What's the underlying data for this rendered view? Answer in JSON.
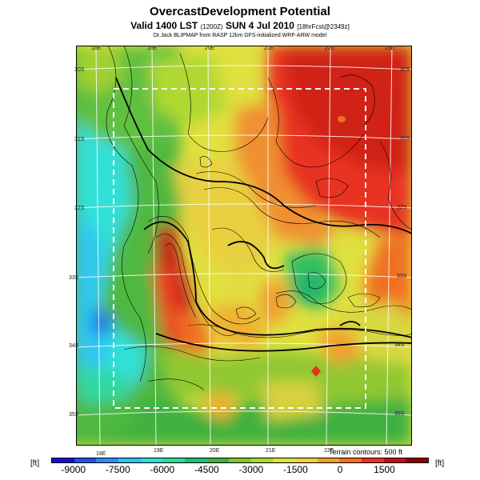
{
  "header": {
    "title": "OvercastDevelopment Potential",
    "valid_main": "Valid 1400 LST",
    "valid_small": "(1200Z)",
    "valid_date": "SUN 4 Jul 2010",
    "valid_fcst": "[18hrFcst@2349z]",
    "credit": "Dr.Jack BLIPMAP from RASP 12km GFS-initialized WRF-ARW model"
  },
  "map": {
    "lon_labels_top": [
      "18E",
      "19E",
      "20E",
      "21E",
      "22E",
      "23E"
    ],
    "lon_labels_bottom": [
      "18E",
      "19E",
      "20E",
      "21E",
      "22E"
    ],
    "lat_labels_left": [
      "30S",
      "31S",
      "32S",
      "33S",
      "34S",
      "35S"
    ],
    "lat_labels_right": [
      "30S",
      "31S",
      "32S",
      "33S",
      "34S",
      "35S"
    ],
    "terrain_note": "Terrain contours: 500 ft"
  },
  "legend": {
    "unit_left": "[ft]",
    "unit_right": "[ft]",
    "ticks": [
      "-9000",
      "-7500",
      "-6000",
      "-4500",
      "-3000",
      "-1500",
      "0",
      "1500"
    ],
    "colors": [
      "#1010d0",
      "#1f50e8",
      "#2f8cf0",
      "#30c0f0",
      "#30e0d8",
      "#30d8a0",
      "#20c070",
      "#40b040",
      "#80c830",
      "#b0d830",
      "#e0e040",
      "#f0d040",
      "#f0a030",
      "#f07020",
      "#e83020",
      "#c01010",
      "#900000"
    ]
  }
}
